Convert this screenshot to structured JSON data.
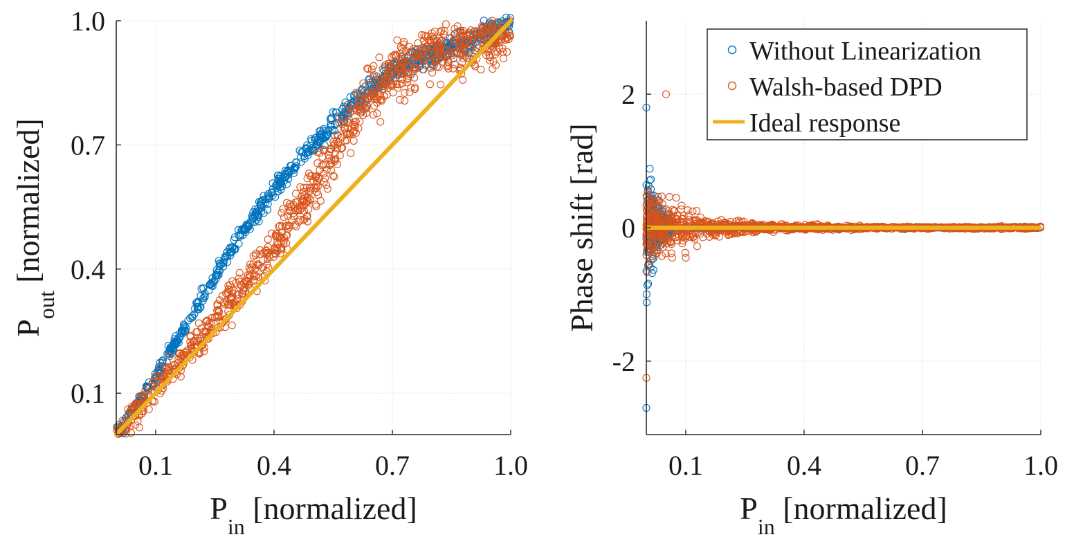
{
  "chart_data": [
    {
      "type": "scatter",
      "panel": "left",
      "xlabel": {
        "main": "P",
        "sub": "in",
        "rest": " [normalized]"
      },
      "ylabel": {
        "main": "P",
        "sub": "out",
        "rest": " [normalized]"
      },
      "xlim": [
        0,
        1.0
      ],
      "ylim": [
        0,
        1.0
      ],
      "xticks": [
        0.1,
        0.4,
        0.7,
        1.0
      ],
      "xtick_labels": [
        "0.1",
        "0.4",
        "0.7",
        "1.0"
      ],
      "yticks": [
        0.1,
        0.4,
        0.7,
        1.0
      ],
      "ytick_labels": [
        "0.1",
        "0.4",
        "0.7",
        "1.0"
      ],
      "grid": true,
      "series": [
        {
          "name": "Without Linearization",
          "marker": "circle-open",
          "color": "#0072BD",
          "curve": {
            "x": [
              0.0,
              0.1,
              0.2,
              0.3,
              0.4,
              0.5,
              0.6,
              0.7,
              0.8,
              0.9,
              1.0
            ],
            "y": [
              0.0,
              0.14,
              0.3,
              0.46,
              0.59,
              0.7,
              0.8,
              0.88,
              0.92,
              0.95,
              1.0
            ]
          },
          "spread": 0.012
        },
        {
          "name": "Walsh-based DPD",
          "marker": "circle-open",
          "color": "#D95319",
          "curve": {
            "x": [
              0.0,
              0.1,
              0.2,
              0.3,
              0.4,
              0.5,
              0.6,
              0.7,
              0.8,
              0.9,
              1.0
            ],
            "y": [
              0.0,
              0.11,
              0.22,
              0.33,
              0.45,
              0.6,
              0.76,
              0.88,
              0.92,
              0.94,
              0.96
            ]
          },
          "spread": 0.03
        },
        {
          "name": "Ideal response",
          "style": "line",
          "color": "#EDB120",
          "x": [
            0.0,
            1.0
          ],
          "y": [
            0.0,
            1.0
          ]
        }
      ]
    },
    {
      "type": "scatter",
      "panel": "right",
      "xlabel": {
        "main": "P",
        "sub": "in",
        "rest": " [normalized]"
      },
      "ylabel": {
        "main": "Phase shift [rad]",
        "sub": "",
        "rest": ""
      },
      "xlim": [
        0,
        1.0
      ],
      "ylim": [
        -3.1,
        3.1
      ],
      "xticks": [
        0.1,
        0.4,
        0.7,
        1.0
      ],
      "xtick_labels": [
        "0.1",
        "0.4",
        "0.7",
        "1.0"
      ],
      "yticks": [
        -2,
        0,
        2
      ],
      "ytick_labels": [
        "-2",
        "0",
        "2"
      ],
      "grid": true,
      "series": [
        {
          "name": "Without Linearization",
          "marker": "circle-open",
          "color": "#0072BD",
          "spread_at_low_input": 1.2,
          "spread_at_high_input": 0.02,
          "outliers": [
            {
              "x": 0.0,
              "y": -2.7
            },
            {
              "x": 0.0,
              "y": 1.8
            }
          ]
        },
        {
          "name": "Walsh-based DPD",
          "marker": "circle-open",
          "color": "#D95319",
          "spread_at_low_input": 0.7,
          "spread_at_high_input": 0.02,
          "outliers": [
            {
              "x": 0.0,
              "y": -2.25
            },
            {
              "x": 0.05,
              "y": 2.0
            }
          ]
        },
        {
          "name": "Ideal response",
          "style": "line",
          "color": "#EDB120",
          "x": [
            0.0,
            1.0
          ],
          "y": [
            0.0,
            0.0
          ]
        }
      ],
      "legend": {
        "location": "top-right",
        "entries": [
          "Without Linearization",
          "Walsh-based DPD",
          "Ideal response"
        ]
      }
    }
  ]
}
